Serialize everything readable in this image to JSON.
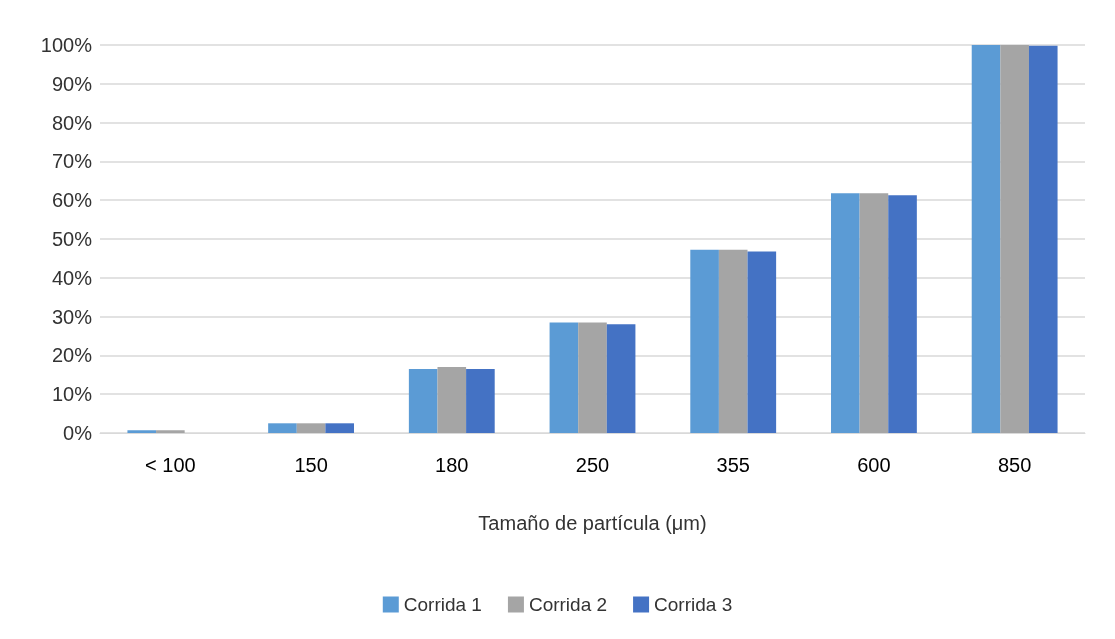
{
  "chart_data": {
    "type": "bar",
    "xlabel": "Tamaño de partícula (μm)",
    "categories": [
      "< 100",
      "150",
      "180",
      "250",
      "355",
      "600",
      "850"
    ],
    "series": [
      {
        "name": "Corrida 1",
        "color": "#5b9bd5",
        "values": [
          0.7,
          2.5,
          16.5,
          28.5,
          47.2,
          61.8,
          100
        ]
      },
      {
        "name": "Corrida 2",
        "color": "#a5a5a5",
        "values": [
          0.7,
          2.5,
          17,
          28.5,
          47.2,
          61.8,
          100
        ]
      },
      {
        "name": "Corrida 3",
        "color": "#4472c4",
        "values": [
          0,
          2.5,
          16.5,
          28,
          46.8,
          61.3,
          99.8
        ]
      }
    ],
    "ylim": [
      0,
      100
    ],
    "yticks": [
      {
        "value": 0,
        "label": "0%"
      },
      {
        "value": 10,
        "label": "10%"
      },
      {
        "value": 20,
        "label": "20%"
      },
      {
        "value": 30,
        "label": "30%"
      },
      {
        "value": 40,
        "label": "40%"
      },
      {
        "value": 50,
        "label": "50%"
      },
      {
        "value": 60,
        "label": "60%"
      },
      {
        "value": 70,
        "label": "70%"
      },
      {
        "value": 80,
        "label": "80%"
      },
      {
        "value": 90,
        "label": "90%"
      },
      {
        "value": 100,
        "label": "100%"
      }
    ],
    "grid": "y",
    "legend": "bottom"
  }
}
